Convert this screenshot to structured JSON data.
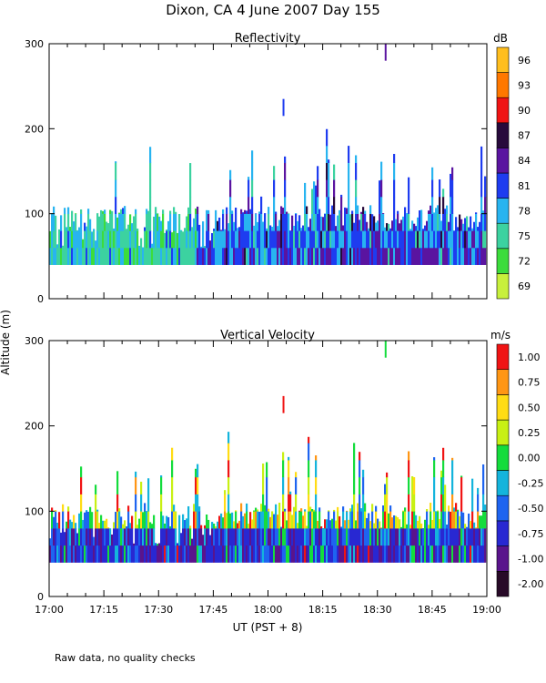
{
  "figure_title": "Dixon, CA  4 June 2007  Day 155",
  "footnote": "Raw data, no quality checks",
  "shared_ylabel": "Altitude (m)",
  "shared_xlabel": "UT  (PST + 8)",
  "chart_data": [
    {
      "type": "heatmap",
      "title": "Reflectivity",
      "xlabel": "UT  (PST + 8)",
      "ylabel": "Altitude (m)",
      "x_range_minutes": [
        0,
        120
      ],
      "x_tick_labels": [
        "17:00",
        "17:15",
        "17:30",
        "17:45",
        "18:00",
        "18:15",
        "18:30",
        "18:45",
        "19:00"
      ],
      "ylim": [
        0,
        300
      ],
      "y_ticks": [
        0,
        100,
        200,
        300
      ],
      "colorbar": {
        "unit": "dB",
        "labels": [
          "69",
          "72",
          "75",
          "78",
          "81",
          "84",
          "87",
          "90",
          "93",
          "96"
        ],
        "colors": [
          "#c8f03c",
          "#3cdc3c",
          "#3cd2a0",
          "#28b4f0",
          "#1e3cf0",
          "#5a14a0",
          "#280a3c",
          "#f01414",
          "#ff7800",
          "#ffbe1e"
        ]
      },
      "echo_base_m": 40,
      "typical_top_m": 100,
      "max_echo_top_m": 200,
      "isolated_returns": [
        {
          "time": "18:04",
          "altitude_m": 225,
          "level": "81"
        },
        {
          "time": "18:32",
          "altitude_m": 290,
          "level": "84"
        }
      ]
    },
    {
      "type": "heatmap",
      "title": "Vertical Velocity",
      "xlabel": "UT  (PST + 8)",
      "ylabel": "Altitude (m)",
      "x_range_minutes": [
        0,
        120
      ],
      "x_tick_labels": [
        "17:00",
        "17:15",
        "17:30",
        "17:45",
        "18:00",
        "18:15",
        "18:30",
        "18:45",
        "19:00"
      ],
      "ylim": [
        0,
        300
      ],
      "y_ticks": [
        0,
        100,
        200,
        300
      ],
      "colorbar": {
        "unit": "m/s",
        "labels": [
          "-2.00",
          "-1.00",
          "-0.75",
          "-0.50",
          "-0.25",
          "0.00",
          "0.25",
          "0.50",
          "0.75",
          "1.00"
        ],
        "colors": [
          "#280a28",
          "#5a148c",
          "#2828d2",
          "#1e64f0",
          "#14b4dc",
          "#14dc3c",
          "#c8f014",
          "#ffdc14",
          "#ff9614",
          "#f01414"
        ]
      },
      "echo_base_m": 40,
      "typical_top_m": 100,
      "max_echo_top_m": 200,
      "isolated_returns": [
        {
          "time": "18:04",
          "altitude_m": 225,
          "level": "1.00"
        },
        {
          "time": "18:32",
          "altitude_m": 290,
          "level": "0.00"
        }
      ]
    }
  ]
}
